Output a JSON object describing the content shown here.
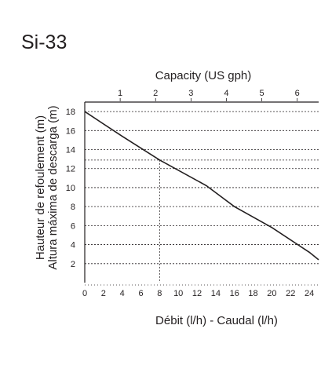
{
  "model": "Si-33",
  "chart_data": {
    "type": "line",
    "title": "Si-33",
    "xlabel": "Débit (l/h) - Caudal (l/h)",
    "ylabel": [
      "Hauteur de refoulement (m)",
      "Altura máxima de descarga (m)"
    ],
    "x2label": "Capacity (US gph)",
    "xlim": [
      0,
      25
    ],
    "ylim": [
      0,
      19
    ],
    "x_ticks": [
      "0",
      "2",
      "4",
      "6",
      "8",
      "10",
      "12",
      "14",
      "16",
      "18",
      "20",
      "22",
      "24"
    ],
    "x2_ticks": [
      "1",
      "2",
      "3",
      "4",
      "5",
      "6"
    ],
    "y_ticks": [
      "2",
      "4",
      "6",
      "8",
      "10",
      "12",
      "14",
      "16",
      "18"
    ],
    "y_gridlines": [
      2,
      4,
      6,
      8,
      10,
      12,
      12.9,
      14,
      16,
      18
    ],
    "series": [
      {
        "x": [
          0,
          4,
          8,
          13,
          16,
          20,
          24,
          25
        ],
        "y": [
          18,
          15.4,
          12.9,
          10.2,
          8,
          5.8,
          3.2,
          2.4
        ]
      }
    ],
    "reference": {
      "x": 8,
      "y": 12.9
    },
    "grid": "dashed-horizontal"
  },
  "colors": {
    "ink": "#231f20",
    "background": "#ffffff"
  }
}
